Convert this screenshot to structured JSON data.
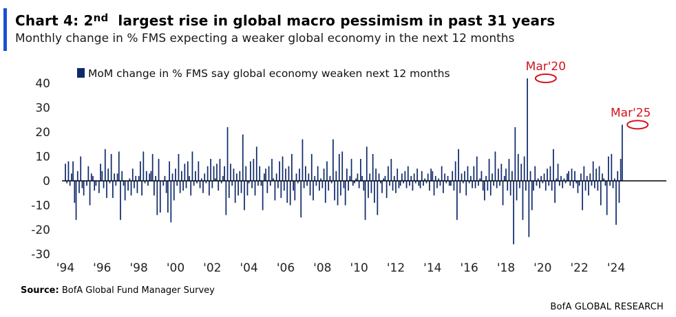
{
  "header": {
    "title_prefix": "Chart 4: 2",
    "title_sup": "nd",
    "title_suffix": "largest rise in global macro pessimism in past 31 years",
    "subtitle": "Monthly change in % FMS expecting a weaker global economy in the next 12 months"
  },
  "footer": {
    "source_label": "Source:",
    "source_text": "BofA Global Fund Manager Survey",
    "brand": "BofA GLOBAL RESEARCH"
  },
  "colors": {
    "bar": "#0f2a6b",
    "accent": "#1a4fd6",
    "annotation": "#d4121b",
    "axis": "#000000"
  },
  "chart_data": {
    "type": "bar",
    "ylim": [
      -30,
      45
    ],
    "yticks": [
      40,
      30,
      20,
      10,
      0,
      -10,
      -20,
      -30
    ],
    "x_range": [
      1994.0,
      2025.5
    ],
    "xticks": [
      {
        "value": 1994,
        "label": "'94"
      },
      {
        "value": 1996,
        "label": "'96"
      },
      {
        "value": 1998,
        "label": "'98"
      },
      {
        "value": 2000,
        "label": "'00"
      },
      {
        "value": 2002,
        "label": "'02"
      },
      {
        "value": 2004,
        "label": "'04"
      },
      {
        "value": 2006,
        "label": "'06"
      },
      {
        "value": 2008,
        "label": "'08"
      },
      {
        "value": 2010,
        "label": "'10"
      },
      {
        "value": 2012,
        "label": "'12"
      },
      {
        "value": 2014,
        "label": "'14"
      },
      {
        "value": 2016,
        "label": "'16"
      },
      {
        "value": 2018,
        "label": "'18"
      },
      {
        "value": 2020,
        "label": "'20"
      },
      {
        "value": 2022,
        "label": "'22"
      },
      {
        "value": 2024,
        "label": "'24"
      }
    ],
    "legend": {
      "label": "MoM change in % FMS say global economy weaken next 12 months",
      "position": "top-left"
    },
    "annotations": [
      {
        "label": "Mar'20",
        "x": 2020.17,
        "y": 42
      },
      {
        "label": "Mar'25",
        "x": 2025.17,
        "y": 23
      }
    ],
    "series": [
      {
        "name": "MoM change in % FMS say global economy weaken next 12 months",
        "start": 1994.0,
        "step": 0.0833333,
        "values": [
          7,
          -1,
          8,
          -2,
          3,
          8,
          -9,
          -16,
          4,
          -5,
          10,
          -3,
          -6,
          0,
          -2,
          6,
          -10,
          3,
          2,
          -4,
          -2,
          0,
          -5,
          7,
          4,
          -3,
          13,
          -7,
          5,
          -1,
          11,
          -7,
          3,
          -2,
          3,
          12,
          -16,
          4,
          -2,
          -8,
          0,
          -4,
          1,
          -6,
          5,
          -3,
          2,
          -5,
          2,
          8,
          -6,
          12,
          -1,
          4,
          -2,
          3,
          4,
          11,
          -6,
          2,
          -14,
          9,
          -13,
          0,
          -2,
          2,
          -5,
          -13,
          8,
          -17,
          3,
          -8,
          5,
          -2,
          11,
          -5,
          4,
          -4,
          7,
          -3,
          8,
          2,
          -6,
          12,
          -2,
          4,
          -1,
          8,
          -3,
          1,
          -5,
          3,
          -1,
          6,
          -6,
          9,
          -3,
          6,
          1,
          7,
          -4,
          9,
          -1,
          2,
          6,
          -14,
          22,
          -7,
          7,
          -2,
          5,
          -9,
          3,
          -6,
          4,
          -5,
          19,
          -12,
          6,
          -6,
          -1,
          8,
          -3,
          9,
          -6,
          14,
          -2,
          6,
          -2,
          -12,
          3,
          5,
          -5,
          6,
          -2,
          9,
          1,
          -8,
          3,
          -3,
          8,
          -7,
          10,
          -4,
          5,
          -9,
          6,
          -10,
          11,
          -4,
          -8,
          3,
          -1,
          5,
          -15,
          17,
          -3,
          6,
          -2,
          3,
          -6,
          11,
          -8,
          2,
          -2,
          6,
          -4,
          1,
          -3,
          5,
          -9,
          8,
          -4,
          2,
          -1,
          17,
          -8,
          4,
          -10,
          11,
          -6,
          12,
          -3,
          -10,
          5,
          -4,
          2,
          9,
          -2,
          -1,
          1,
          3,
          -3,
          9,
          2,
          -4,
          -16,
          14,
          -7,
          3,
          -5,
          11,
          -9,
          5,
          -14,
          3,
          -1,
          -5,
          1,
          2,
          -7,
          6,
          -2,
          9,
          -4,
          2,
          -5,
          5,
          -3,
          -2,
          3,
          -1,
          4,
          -3,
          6,
          -2,
          2,
          -4,
          3,
          -1,
          5,
          -2,
          -3,
          4,
          -2,
          1,
          -1,
          3,
          -4,
          5,
          4,
          -6,
          2,
          -3,
          1,
          -2,
          6,
          -5,
          3,
          -1,
          2,
          -2,
          -2,
          4,
          -4,
          8,
          -16,
          13,
          -5,
          3,
          -1,
          4,
          -6,
          6,
          -1,
          2,
          -3,
          6,
          -3,
          10,
          -2,
          1,
          4,
          -4,
          -8,
          2,
          -4,
          9,
          -6,
          3,
          -2,
          12,
          -3,
          5,
          -2,
          7,
          -10,
          2,
          5,
          -4,
          9,
          -6,
          4,
          -26,
          22,
          -8,
          11,
          -3,
          7,
          -16,
          10,
          -4,
          42,
          -23,
          4,
          -12,
          -4,
          6,
          -2,
          1,
          -3,
          2,
          -1,
          3,
          -4,
          5,
          -2,
          6,
          -4,
          13,
          -9,
          1,
          7,
          -2,
          2,
          -3,
          1,
          -1,
          3,
          4,
          -2,
          5,
          -3,
          4,
          -1,
          -5,
          -2,
          3,
          -12,
          6,
          -4,
          2,
          -6,
          3,
          -2,
          8,
          -3,
          5,
          -4,
          6,
          -10,
          3,
          1,
          -2,
          -14,
          10,
          -2,
          11,
          -3,
          1,
          -18,
          4,
          -9,
          9,
          23
        ]
      }
    ]
  }
}
